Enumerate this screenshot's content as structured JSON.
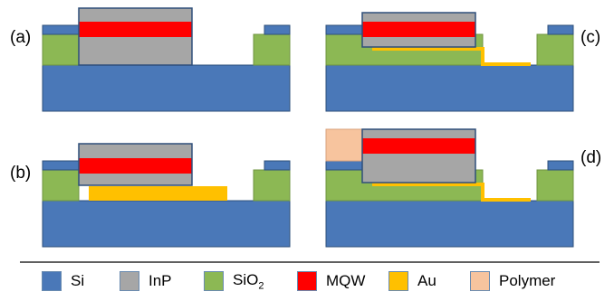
{
  "panels": [
    {
      "id": "a",
      "label": "(a)"
    },
    {
      "id": "b",
      "label": "(b)"
    },
    {
      "id": "c",
      "label": "(c)"
    },
    {
      "id": "d",
      "label": "(d)"
    }
  ],
  "legend": [
    {
      "key": "si",
      "label": "Si",
      "color": "#4a78b8"
    },
    {
      "key": "inp",
      "label": "InP",
      "color": "#a6a6a6"
    },
    {
      "key": "sio2",
      "label": "SiO",
      "sub": "2",
      "color": "#8cb854"
    },
    {
      "key": "mqw",
      "label": "MQW",
      "color": "#ff0000"
    },
    {
      "key": "au",
      "label": "Au",
      "color": "#ffc000"
    },
    {
      "key": "polymer",
      "label": "Polymer",
      "color": "#f7c49e"
    }
  ],
  "colors": {
    "si": "#4a78b8",
    "inp": "#a6a6a6",
    "sio2": "#8cb854",
    "mqw": "#ff0000",
    "au": "#ffc000",
    "polymer": "#f7c49e",
    "outline": "#2e4f7a"
  }
}
